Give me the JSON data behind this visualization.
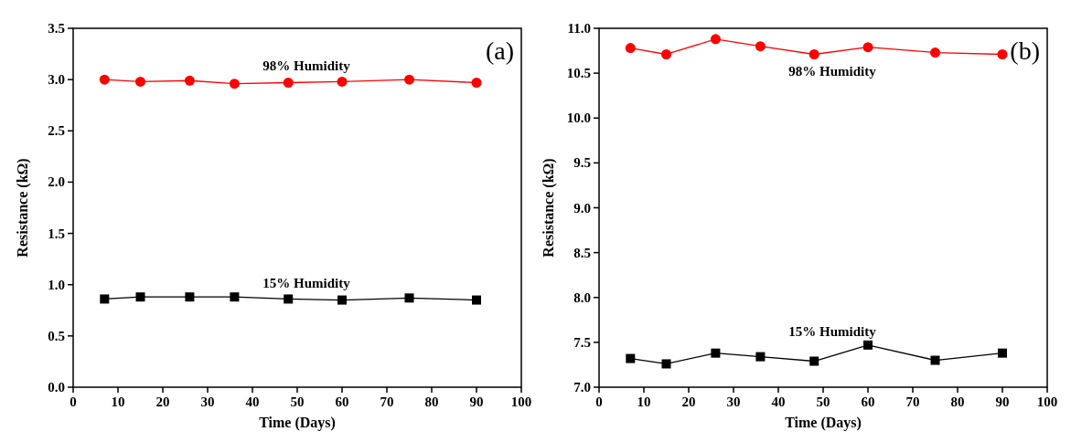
{
  "chart_data": [
    {
      "type": "line",
      "xlabel": "Time (Days)",
      "ylabel": "Resistance (kΩ)",
      "annotations": [
        "(a)"
      ],
      "x": [
        7,
        15,
        26,
        36,
        48,
        60,
        75,
        90
      ],
      "xlim": [
        0,
        100
      ],
      "xticks": [
        0,
        10,
        20,
        30,
        40,
        50,
        60,
        70,
        80,
        90,
        100
      ],
      "ylim": [
        0,
        3.5
      ],
      "yticks": [
        {
          "value": 0,
          "label": "0.0"
        },
        0.5,
        {
          "value": 1,
          "label": "1.0"
        },
        1.5,
        {
          "value": 2,
          "label": "2.0"
        },
        2.5,
        {
          "value": 3,
          "label": "3.0"
        },
        3.5
      ],
      "series": [
        {
          "name": "98% Humidity",
          "color": "#ff0000",
          "marker": "circle",
          "values": [
            3.0,
            2.98,
            2.99,
            2.96,
            2.97,
            2.98,
            3.0,
            2.97
          ]
        },
        {
          "name": "15% Humidity",
          "color": "#000000",
          "marker": "square",
          "values": [
            0.86,
            0.88,
            0.88,
            0.88,
            0.86,
            0.85,
            0.87,
            0.85
          ]
        }
      ]
    },
    {
      "type": "line",
      "xlabel": "Time (Days)",
      "ylabel": "Resistance (kΩ)",
      "annotations": [
        "(b)"
      ],
      "x": [
        7,
        15,
        26,
        36,
        48,
        60,
        75,
        90
      ],
      "xlim": [
        0,
        100
      ],
      "xticks": [
        0,
        10,
        20,
        30,
        40,
        50,
        60,
        70,
        80,
        90,
        100
      ],
      "ylim": [
        7,
        11
      ],
      "yticks": [
        {
          "value": 7,
          "label": "7.0"
        },
        7.5,
        {
          "value": 8,
          "label": "8.0"
        },
        8.5,
        {
          "value": 9,
          "label": "9.0"
        },
        9.5,
        {
          "value": 10,
          "label": "10.0"
        },
        10.5,
        {
          "value": 11,
          "label": "11.0"
        }
      ],
      "series": [
        {
          "name": "98% Humidity",
          "color": "#ff0000",
          "marker": "circle",
          "values": [
            10.78,
            10.71,
            10.88,
            10.8,
            10.71,
            10.79,
            10.73,
            10.71
          ]
        },
        {
          "name": "15% Humidity",
          "color": "#000000",
          "marker": "square",
          "values": [
            7.32,
            7.26,
            7.38,
            7.34,
            7.29,
            7.47,
            7.3,
            7.38
          ]
        }
      ]
    }
  ]
}
